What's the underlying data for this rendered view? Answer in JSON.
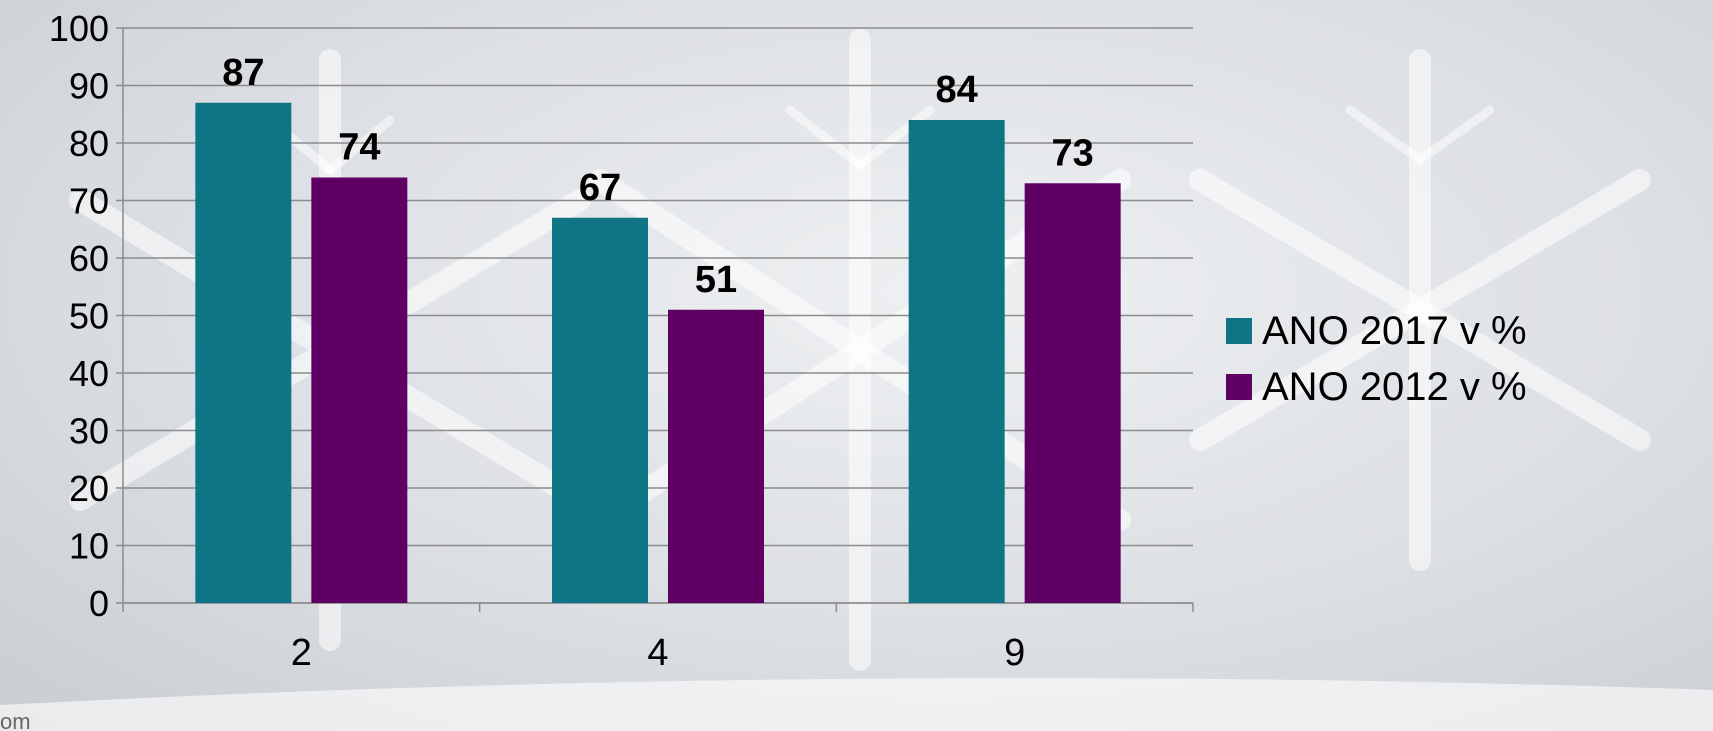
{
  "chart_data": {
    "type": "bar",
    "categories": [
      "2",
      "4",
      "9"
    ],
    "series": [
      {
        "name": "ANO 2017 v %",
        "values": [
          87,
          67,
          84
        ],
        "color": "#0f7586"
      },
      {
        "name": "ANO 2012 v %",
        "values": [
          74,
          51,
          73
        ],
        "color": "#5e0063"
      }
    ],
    "ylim": [
      0,
      100
    ],
    "yticks": [
      0,
      10,
      20,
      30,
      40,
      50,
      60,
      70,
      80,
      90,
      100
    ],
    "grid": true,
    "legend_position": "right",
    "data_labels": true
  },
  "footer_fragment": "om"
}
